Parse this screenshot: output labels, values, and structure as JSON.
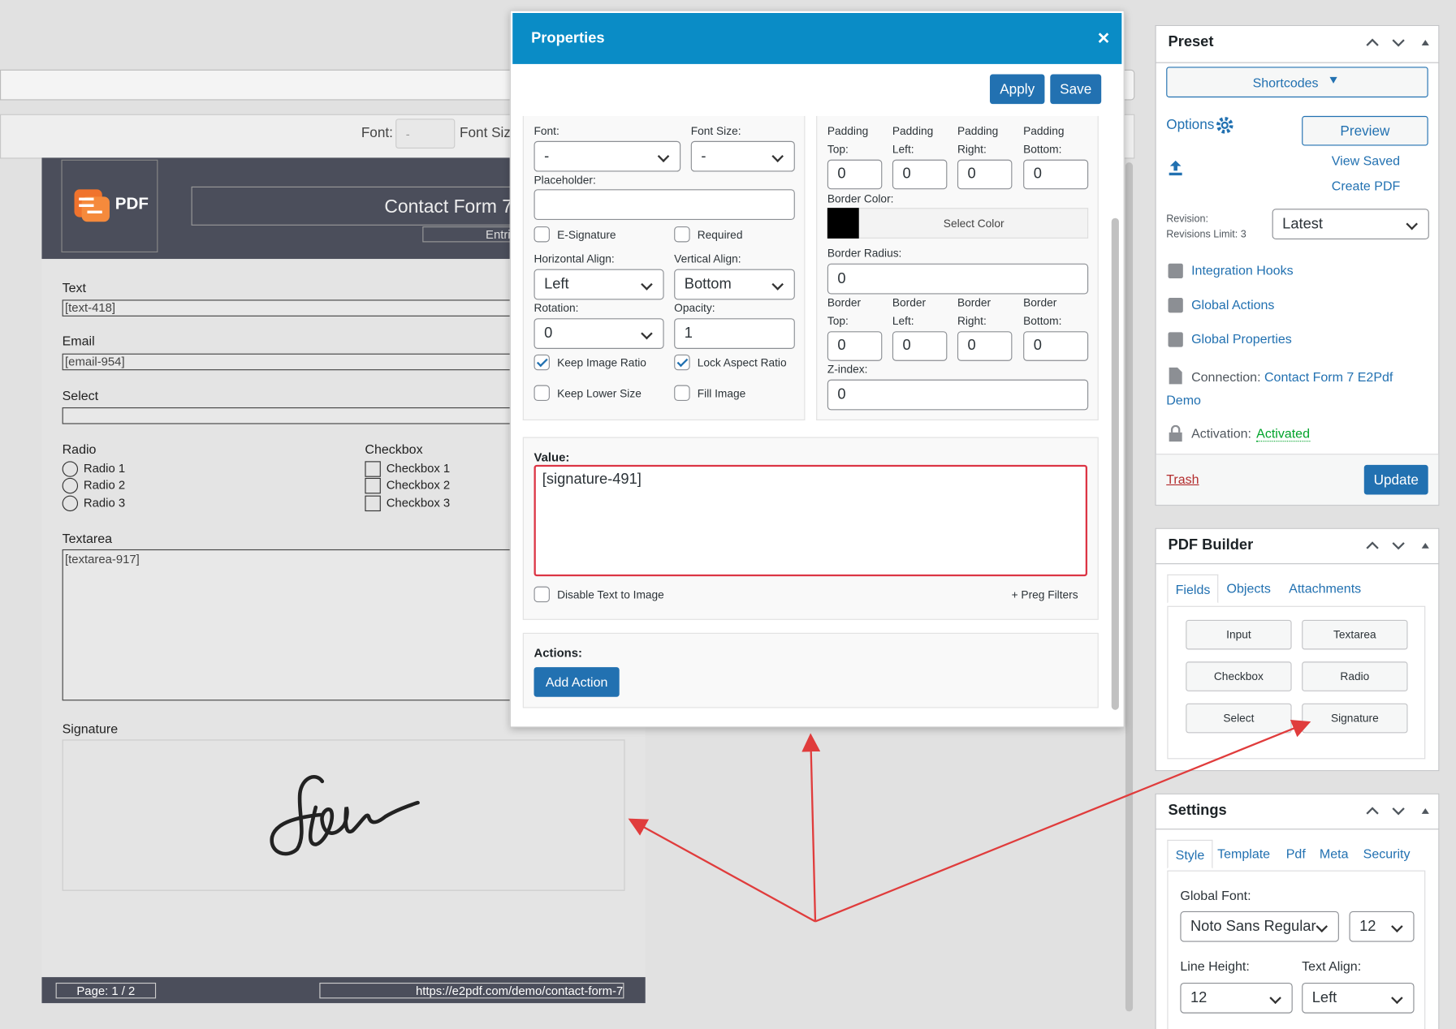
{
  "editor": {
    "toolbar": {
      "font_label": "Font:",
      "font_value": "-",
      "font_size_label": "Font Size"
    }
  },
  "pdf_page": {
    "logo": "PDF",
    "title": "Contact Form 7",
    "subtitle": "Entries",
    "fields": {
      "text_label": "Text",
      "text_value": "[text-418]",
      "email_label": "Email",
      "email_value": "[email-954]",
      "select_label": "Select",
      "radio_label": "Radio",
      "radio_options": [
        "Radio 1",
        "Radio 2",
        "Radio 3"
      ],
      "checkbox_label": "Checkbox",
      "checkbox_options": [
        "Checkbox 1",
        "Checkbox 2",
        "Checkbox 3"
      ],
      "textarea_label": "Textarea",
      "textarea_value": "[textarea-917]",
      "signature_label": "Signature"
    },
    "footer": {
      "page": "Page: 1 / 2",
      "url": "https://e2pdf.com/demo/contact-form-7"
    }
  },
  "modal": {
    "title": "Properties",
    "close": "×",
    "buttons": {
      "apply": "Apply",
      "save": "Save"
    },
    "left": {
      "font_label": "Font:",
      "font_value": "-",
      "font_size_label": "Font Size:",
      "font_size_value": "-",
      "placeholder_label": "Placeholder:",
      "e_signature": "E-Signature",
      "required": "Required",
      "horizontal_align_label": "Horizontal Align:",
      "horizontal_align_value": "Left",
      "vertical_align_label": "Vertical Align:",
      "vertical_align_value": "Bottom",
      "rotation_label": "Rotation:",
      "rotation_value": 0,
      "opacity_label": "Opacity:",
      "opacity_value": 1,
      "keep_image_ratio": "Keep Image Ratio",
      "lock_aspect_ratio": "Lock Aspect Ratio",
      "keep_lower_size": "Keep Lower Size",
      "fill_image": "Fill Image"
    },
    "right": {
      "padding": [
        {
          "label": "Padding",
          "sub": "Top:",
          "value": 0
        },
        {
          "label": "Padding",
          "sub": "Left:",
          "value": 0
        },
        {
          "label": "Padding",
          "sub": "Right:",
          "value": 0
        },
        {
          "label": "Padding",
          "sub": "Bottom:",
          "value": 0
        }
      ],
      "border_color_label": "Border Color:",
      "select_color": "Select Color",
      "border_radius_label": "Border Radius:",
      "border_radius_value": 0,
      "border": [
        {
          "label": "Border",
          "sub": "Top:",
          "value": 0
        },
        {
          "label": "Border",
          "sub": "Left:",
          "value": 0
        },
        {
          "label": "Border",
          "sub": "Right:",
          "value": 0
        },
        {
          "label": "Border",
          "sub": "Bottom:",
          "value": 0
        }
      ],
      "z_index_label": "Z-index:",
      "z_index_value": 0
    },
    "value_label": "Value:",
    "value_text": "[signature-491]",
    "disable_text_to_image": "Disable Text to Image",
    "preg_filters": "+ Preg Filters",
    "actions_label": "Actions:",
    "add_action": "Add Action"
  },
  "sidebar": {
    "preset": {
      "title": "Preset",
      "shortcodes": "Shortcodes",
      "options": "Options",
      "preview": "Preview",
      "view_saved": "View Saved",
      "create_pdf": "Create PDF",
      "revision_label": "Revision:",
      "revisions_limit": "Revisions Limit: 3",
      "revision_value": "Latest",
      "links": [
        "Integration Hooks",
        "Global Actions",
        "Global Properties"
      ],
      "connection_label": "Connection:",
      "connection_value": "Contact Form 7 E2Pdf Demo",
      "activation_label": "Activation:",
      "activation_value": "Activated",
      "trash": "Trash",
      "update": "Update"
    },
    "pdf_builder": {
      "title": "PDF Builder",
      "tabs": [
        "Fields",
        "Objects",
        "Attachments"
      ],
      "items": [
        "Input",
        "Textarea",
        "Checkbox",
        "Radio",
        "Select",
        "Signature"
      ]
    },
    "settings": {
      "title": "Settings",
      "tabs": [
        "Style",
        "Template",
        "Pdf",
        "Meta",
        "Security"
      ],
      "global_font_label": "Global Font:",
      "global_font_value": "Noto Sans Regular",
      "font_size_value": 12,
      "line_height_label": "Line Height:",
      "line_height_value": 12,
      "text_align_label": "Text Align:",
      "text_align_value": "Left"
    }
  }
}
